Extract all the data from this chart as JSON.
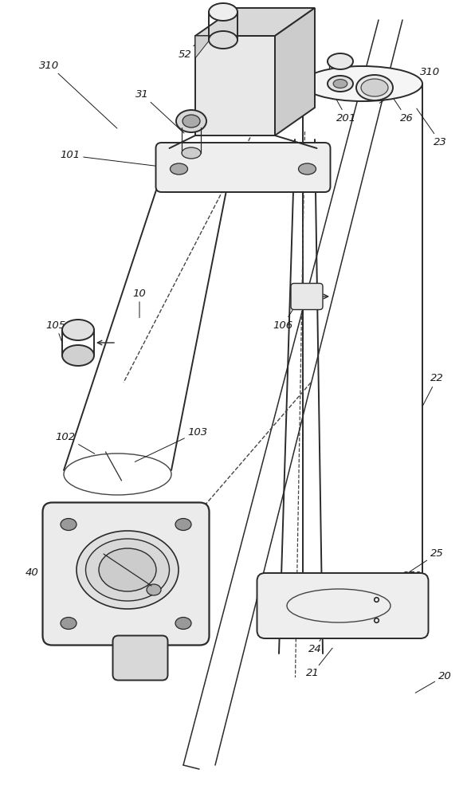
{
  "bg_color": "#ffffff",
  "line_color": "#2a2a2a",
  "dashed_color": "#444444",
  "label_color": "#1a1a1a",
  "lw_main": 1.4,
  "lw_thin": 0.9,
  "font_size": 9.5
}
